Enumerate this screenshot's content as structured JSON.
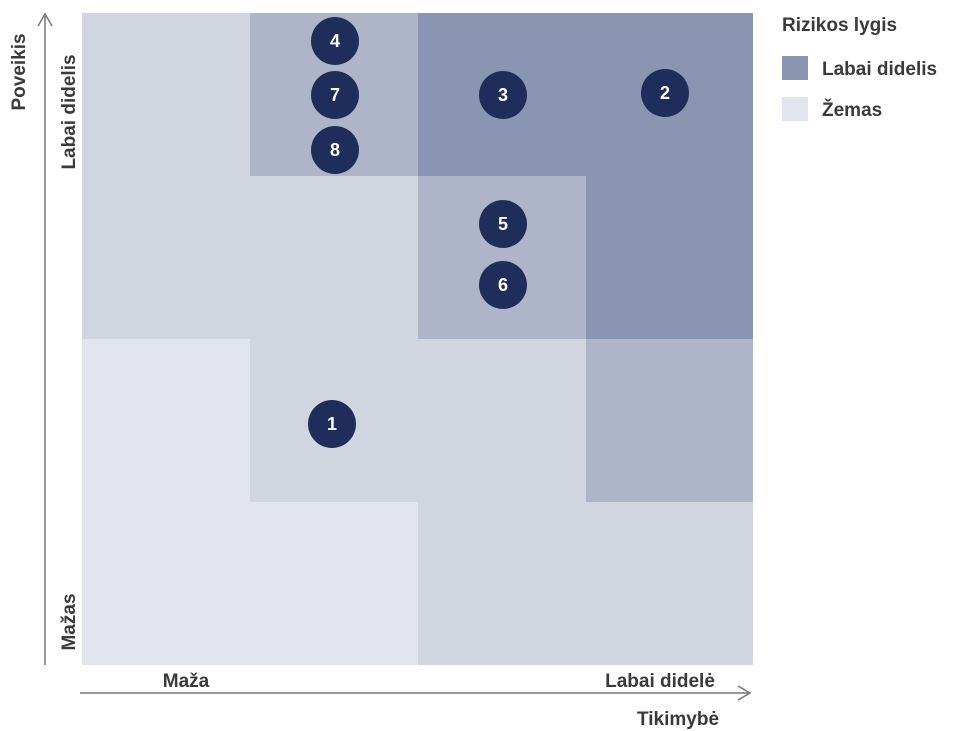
{
  "legend": {
    "title": "Rizikos lygis",
    "items": [
      "Labai didelis",
      "Žemas"
    ]
  },
  "y_axis": {
    "title": "Poveikis",
    "high": "Labai didelis",
    "low": "Mažas"
  },
  "x_axis": {
    "title": "Tikimybė",
    "low": "Maža",
    "high": "Labai didelė"
  },
  "markers": [
    "4",
    "7",
    "8",
    "3",
    "2",
    "5",
    "6",
    "1"
  ]
}
